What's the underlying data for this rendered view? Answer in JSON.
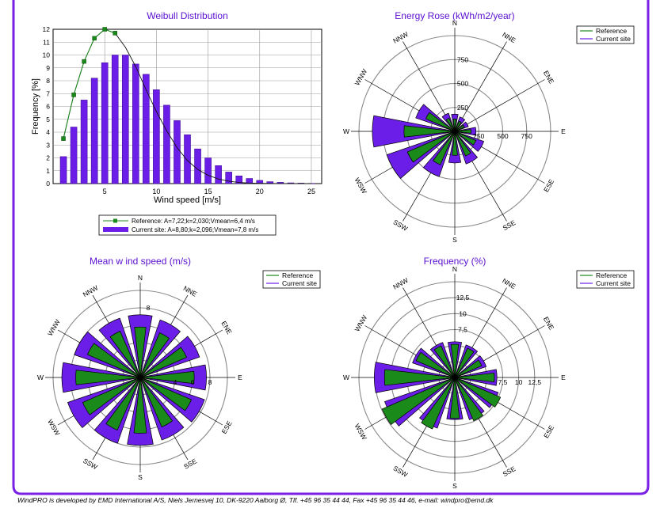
{
  "footer": "WindPRO is developed by EMD International A/S, Niels Jernesvej 10, DK-9220 Aalborg Ø, Tlf. +45 96 35 44 44, Fax +45 96 35 44 46, e-mail: windpro@emd.dk",
  "colors": {
    "reference": "#1a8a1a",
    "current": "#6a1ee8",
    "title": "#5a10d0",
    "frame": "#7a20e6",
    "grid": "#8a8a8a"
  },
  "chart_data": [
    {
      "type": "bar",
      "title": "Weibull Distribution",
      "xlabel": "Wind speed [m/s]",
      "ylabel": "Frequency [%]",
      "xlim": [
        0,
        26
      ],
      "ylim": [
        0,
        12
      ],
      "xticks": [
        5,
        10,
        15,
        20,
        25
      ],
      "yticks": [
        0,
        1,
        2,
        3,
        4,
        5,
        6,
        7,
        8,
        9,
        10,
        11,
        12
      ],
      "grid": true,
      "legend_position": "bottom",
      "bars": {
        "name": "Current site: A=8,80;k=2,096;Vmean=7,8 m/s",
        "x": [
          1,
          2,
          3,
          4,
          5,
          6,
          7,
          8,
          9,
          10,
          11,
          12,
          13,
          14,
          15,
          16,
          17,
          18,
          19,
          20,
          21,
          22,
          23,
          24,
          25
        ],
        "y": [
          2.1,
          4.4,
          6.5,
          8.2,
          9.4,
          10.0,
          10.0,
          9.3,
          8.5,
          7.3,
          6.1,
          4.9,
          3.8,
          2.7,
          2.0,
          1.4,
          0.9,
          0.6,
          0.4,
          0.25,
          0.15,
          0.1,
          0.06,
          0.04,
          0.02
        ]
      },
      "line": {
        "name": "Reference: A=7,22;k=2,030;Vmean=6,4 m/s",
        "x": [
          1,
          2,
          3,
          4,
          5,
          6
        ],
        "y": [
          3.5,
          6.9,
          9.5,
          11.3,
          12.0,
          11.7
        ],
        "curve_x": [
          1,
          2,
          3,
          4,
          5,
          6,
          7,
          8,
          9,
          10,
          11,
          12,
          13,
          14,
          15,
          16,
          17,
          18,
          19,
          20,
          21,
          22,
          23,
          24,
          25
        ],
        "curve_y": [
          3.5,
          6.9,
          9.5,
          11.3,
          12.0,
          11.7,
          10.6,
          9.1,
          7.3,
          5.6,
          4.1,
          2.8,
          1.8,
          1.1,
          0.65,
          0.36,
          0.19,
          0.09,
          0.04,
          0.02,
          0.01,
          0.0,
          0.0,
          0.0,
          0.0
        ]
      }
    },
    {
      "type": "radar",
      "title": "Energy Rose (kWh/m2/year)",
      "directions": [
        "N",
        "NNE",
        "ENE",
        "E",
        "ESE",
        "SSE",
        "S",
        "SSW",
        "WSW",
        "W",
        "WNW",
        "NNW"
      ],
      "rmax": 1000,
      "ring_values": [
        250,
        500,
        750,
        1000
      ],
      "ring_labels_north": [
        "250",
        "500",
        "750"
      ],
      "ring_labels_east": [
        "250",
        "500",
        "750"
      ],
      "legend": [
        "Reference",
        "Current site"
      ],
      "series": [
        {
          "name": "Reference",
          "values": [
            130,
            115,
            110,
            170,
            240,
            280,
            250,
            380,
            540,
            530,
            330,
            150
          ]
        },
        {
          "name": "Current site",
          "values": [
            180,
            160,
            150,
            220,
            320,
            360,
            330,
            500,
            750,
            860,
            430,
            200
          ]
        }
      ]
    },
    {
      "type": "radar",
      "title": "Mean w ind speed (m/s)",
      "directions": [
        "N",
        "NNE",
        "ENE",
        "E",
        "ESE",
        "SSE",
        "S",
        "SSW",
        "WSW",
        "W",
        "WNW",
        "NNW"
      ],
      "rmax": 10,
      "ring_values": [
        2,
        4,
        6,
        8,
        10
      ],
      "ring_labels_north": [
        "8"
      ],
      "ring_labels_east": [
        "4",
        "6",
        "8"
      ],
      "legend": [
        "Reference",
        "Current site"
      ],
      "series": [
        {
          "name": "Reference",
          "values": [
            5.8,
            5.6,
            5.8,
            6.2,
            6.4,
            6.2,
            6.4,
            6.6,
            7.2,
            7.4,
            6.6,
            5.8
          ]
        },
        {
          "name": "Current site",
          "values": [
            7.2,
            7.0,
            7.2,
            7.6,
            7.8,
            7.6,
            7.8,
            8.0,
            8.8,
            9.0,
            8.0,
            7.2
          ]
        }
      ]
    },
    {
      "type": "radar",
      "title": "Frequency (%)",
      "directions": [
        "N",
        "NNE",
        "ENE",
        "E",
        "ESE",
        "SSE",
        "S",
        "SSW",
        "WSW",
        "W",
        "WNW",
        "NNW"
      ],
      "rmax": 15,
      "ring_values": [
        2.5,
        5,
        7.5,
        10,
        12.5,
        15
      ],
      "ring_labels_north": [
        "7,5",
        "10",
        "12,5"
      ],
      "ring_labels_east": [
        "7,5",
        "10",
        "12,5"
      ],
      "legend": [
        "Reference",
        "Current site"
      ],
      "series": [
        {
          "name": "Reference",
          "values": [
            5.2,
            5.0,
            4.6,
            6.2,
            7.8,
            7.4,
            6.4,
            8.8,
            12.4,
            11.0,
            6.6,
            5.4
          ]
        },
        {
          "name": "Current site",
          "values": [
            5.6,
            5.4,
            5.2,
            6.6,
            7.2,
            7.0,
            6.6,
            8.4,
            11.6,
            12.6,
            7.0,
            5.8
          ]
        }
      ]
    }
  ]
}
